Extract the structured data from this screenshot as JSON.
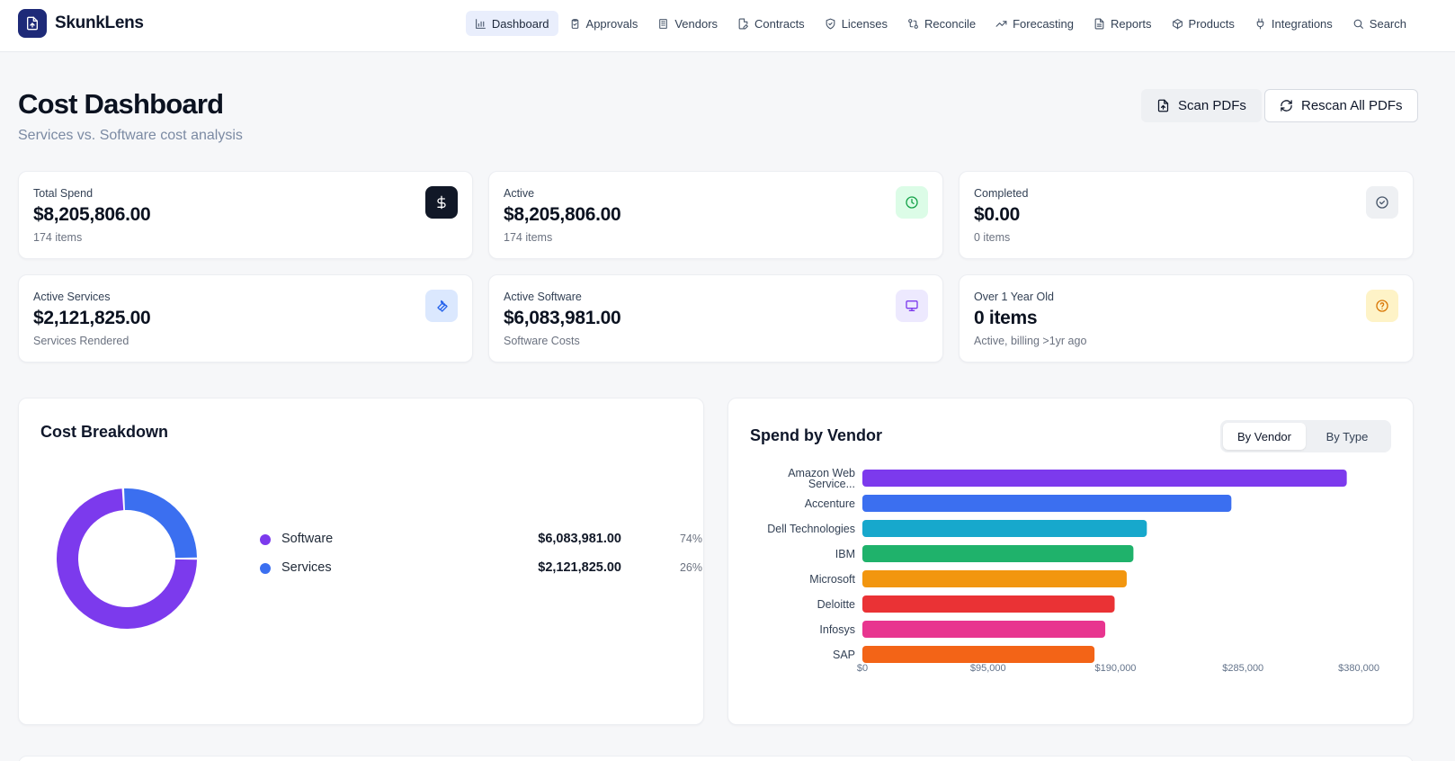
{
  "app": {
    "name": "SkunkLens"
  },
  "nav": {
    "items": [
      {
        "label": "Dashboard",
        "icon": "bar-chart-icon",
        "active": true
      },
      {
        "label": "Approvals",
        "icon": "clipboard-check-icon"
      },
      {
        "label": "Vendors",
        "icon": "building-icon"
      },
      {
        "label": "Contracts",
        "icon": "file-edit-icon"
      },
      {
        "label": "Licenses",
        "icon": "shield-check-icon"
      },
      {
        "label": "Reconcile",
        "icon": "git-compare-icon"
      },
      {
        "label": "Forecasting",
        "icon": "trending-up-icon"
      },
      {
        "label": "Reports",
        "icon": "file-text-icon"
      },
      {
        "label": "Products",
        "icon": "package-icon"
      },
      {
        "label": "Integrations",
        "icon": "plug-icon"
      },
      {
        "label": "Search",
        "icon": "search-icon"
      }
    ]
  },
  "page": {
    "title": "Cost Dashboard",
    "subtitle": "Services vs. Software cost analysis"
  },
  "actions": {
    "scan_label": "Scan PDFs",
    "rescan_label": "Rescan All PDFs"
  },
  "stats": [
    {
      "label": "Total Spend",
      "value": "$8,205,806.00",
      "sub": "174 items",
      "icon": "dollar-icon",
      "icon_bg": "#111827",
      "icon_color": "#ffffff"
    },
    {
      "label": "Active",
      "value": "$8,205,806.00",
      "sub": "174 items",
      "icon": "clock-icon",
      "icon_bg": "#dcfce7",
      "icon_color": "#16a34a"
    },
    {
      "label": "Completed",
      "value": "$0.00",
      "sub": "0 items",
      "icon": "check-circle-icon",
      "icon_bg": "#eef0f3",
      "icon_color": "#475569"
    },
    {
      "label": "Active Services",
      "value": "$2,121,825.00",
      "sub": "Services Rendered",
      "icon": "wrench-icon",
      "icon_bg": "#dbe8fe",
      "icon_color": "#2563eb"
    },
    {
      "label": "Active Software",
      "value": "$6,083,981.00",
      "sub": "Software Costs",
      "icon": "monitor-icon",
      "icon_bg": "#ede9fe",
      "icon_color": "#7c3aed"
    },
    {
      "label": "Over 1 Year Old",
      "value": "0 items",
      "sub": "Active, billing >1yr ago",
      "icon": "help-circle-icon",
      "icon_bg": "#fef3c7",
      "icon_color": "#d97706"
    }
  ],
  "breakdown": {
    "title": "Cost Breakdown",
    "items": [
      {
        "name": "Software",
        "amount": "$6,083,981.00",
        "pct": "74%",
        "color": "#7c3aed"
      },
      {
        "name": "Services",
        "amount": "$2,121,825.00",
        "pct": "26%",
        "color": "#3b6ff0"
      }
    ]
  },
  "vendor_panel": {
    "title": "Spend by Vendor",
    "toggle": {
      "by_vendor": "By Vendor",
      "by_type": "By Type",
      "active": "by_vendor"
    }
  },
  "chart_data": [
    {
      "type": "pie",
      "labels": [
        "Software",
        "Services"
      ],
      "values": [
        6083981,
        2121825
      ],
      "colors": [
        "#7c3aed",
        "#3b6ff0"
      ],
      "donut": true
    },
    {
      "type": "bar",
      "orientation": "horizontal",
      "categories": [
        "Amazon Web Service...",
        "Accenture",
        "Dell Technologies",
        "IBM",
        "Microsoft",
        "Deloitte",
        "Infosys",
        "SAP"
      ],
      "values": [
        361000,
        275000,
        212000,
        202000,
        197000,
        188000,
        181000,
        173000
      ],
      "colors": [
        "#7c3aed",
        "#3b6ff0",
        "#17a8cc",
        "#1fb26b",
        "#f2960f",
        "#ea3235",
        "#e8358f",
        "#f36417"
      ],
      "xlim": [
        0,
        380000
      ],
      "xticks": [
        "$0",
        "$95,000",
        "$190,000",
        "$285,000",
        "$380,000"
      ],
      "grid": false
    }
  ]
}
